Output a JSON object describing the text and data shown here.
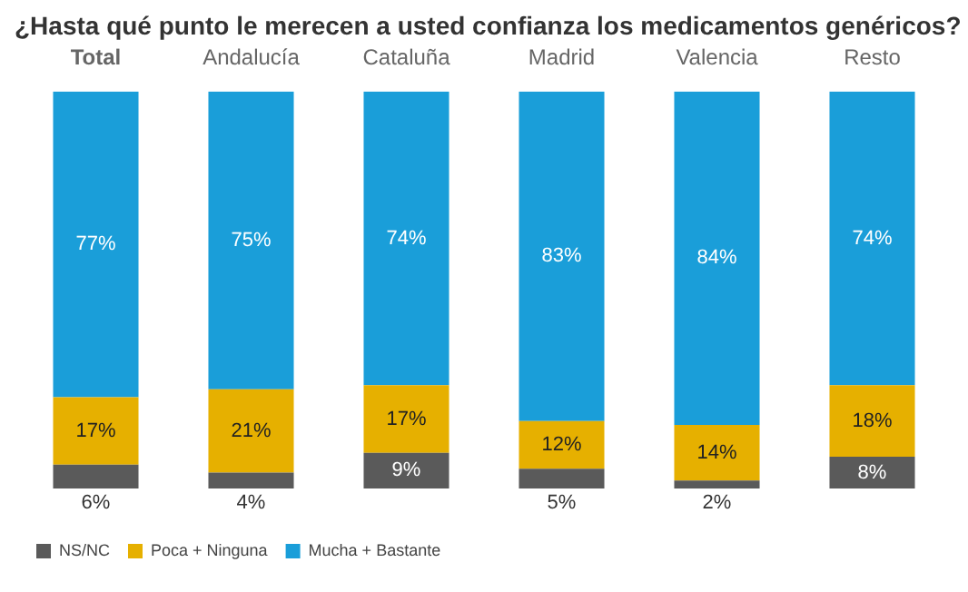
{
  "chart_data": {
    "type": "bar",
    "title": "¿Hasta qué punto le merecen a usted confianza los medicamentos genéricos?",
    "stacked": true,
    "legend": "bottom",
    "categories": [
      "Total",
      "Andalucía",
      "Cataluña",
      "Madrid",
      "Valencia",
      "Resto"
    ],
    "series": [
      {
        "name": "NS/NC",
        "color": "#5a5a5a",
        "values": [
          6,
          4,
          9,
          5,
          2,
          8
        ],
        "value_labels": [
          "6%",
          "4%",
          "9%",
          "5%",
          "2%",
          "8%"
        ]
      },
      {
        "name": "Poca + Ninguna",
        "color": "#e6b000",
        "values": [
          17,
          21,
          17,
          12,
          14,
          18
        ],
        "value_labels": [
          "17%",
          "21%",
          "17%",
          "12%",
          "14%",
          "18%"
        ]
      },
      {
        "name": "Mucha + Bastante",
        "color": "#1a9ed9",
        "values": [
          77,
          75,
          74,
          83,
          84,
          74
        ],
        "value_labels": [
          "77%",
          "75%",
          "74%",
          "83%",
          "84%",
          "74%"
        ]
      }
    ]
  }
}
